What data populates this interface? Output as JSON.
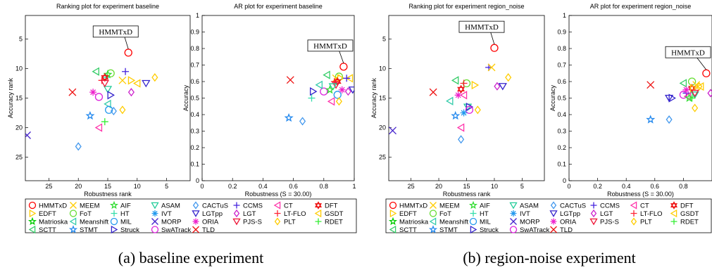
{
  "colors": {
    "HMMTxD": "#ff0000",
    "EDFT": "#ffcc00",
    "Matrioska": "#00cc00",
    "SCTT": "#33cc66",
    "MEEM": "#ffcc00",
    "FoT": "#66dd33",
    "Meanshift": "#33ccaa",
    "STMT": "#2288ee",
    "AIF": "#33dd33",
    "HT": "#33ddaa",
    "MIL": "#2299ee",
    "Struck": "#3322cc",
    "ASAM": "#22cc99",
    "IVT": "#2299ee",
    "MORP": "#4422cc",
    "SwATrack": "#dd22dd",
    "CACTuS": "#4499ee",
    "LGTpp": "#3322cc",
    "ORIA": "#ee22cc",
    "TLD": "#ee1111",
    "CCMS": "#4422dd",
    "LGT": "#cc22cc",
    "PJS-S": "#ee1133",
    "CT": "#ff33aa",
    "LT-FLO": "#ff2233",
    "PLT": "#ffcc00",
    "DFT": "#ee1111",
    "GSDT": "#ffcc00",
    "RDET": "#33ee33"
  },
  "legend": [
    {
      "name": "HMMTxD",
      "marker": "circle"
    },
    {
      "name": "MEEM",
      "marker": "x"
    },
    {
      "name": "AIF",
      "marker": "star"
    },
    {
      "name": "ASAM",
      "marker": "tri-down"
    },
    {
      "name": "CACTuS",
      "marker": "diamond"
    },
    {
      "name": "CCMS",
      "marker": "plus"
    },
    {
      "name": "CT",
      "marker": "tri-left"
    },
    {
      "name": "DFT",
      "marker": "hexagram"
    },
    {
      "name": "EDFT",
      "marker": "tri-right"
    },
    {
      "name": "FoT",
      "marker": "circle"
    },
    {
      "name": "HT",
      "marker": "plus"
    },
    {
      "name": "IVT",
      "marker": "asterisk"
    },
    {
      "name": "LGTpp",
      "marker": "tri-down"
    },
    {
      "name": "LGT",
      "marker": "diamond"
    },
    {
      "name": "LT-FLO",
      "marker": "plus"
    },
    {
      "name": "GSDT",
      "marker": "tri-left"
    },
    {
      "name": "Matrioska",
      "marker": "star"
    },
    {
      "name": "Meanshift",
      "marker": "tri-left"
    },
    {
      "name": "MIL",
      "marker": "circle"
    },
    {
      "name": "MORP",
      "marker": "x"
    },
    {
      "name": "ORIA",
      "marker": "asterisk"
    },
    {
      "name": "PJS-S",
      "marker": "tri-down"
    },
    {
      "name": "PLT",
      "marker": "diamond"
    },
    {
      "name": "RDET",
      "marker": "plus"
    },
    {
      "name": "SCTT",
      "marker": "tri-left"
    },
    {
      "name": "STMT",
      "marker": "star"
    },
    {
      "name": "Struck",
      "marker": "tri-right"
    },
    {
      "name": "SwATrack",
      "marker": "circle"
    },
    {
      "name": "TLD",
      "marker": "x"
    }
  ],
  "captions": {
    "a": "(a) baseline experiment",
    "b": "(b) region-noise experiment"
  },
  "chart_data": [
    {
      "type": "scatter",
      "title": "Ranking plot for experiment baseline",
      "xlabel": "Robustness rank",
      "ylabel": "Accuracy rank",
      "xlim": [
        29,
        1
      ],
      "ylim": [
        1,
        29
      ],
      "xticks": [
        25,
        20,
        15,
        10,
        5
      ],
      "yticks": [
        5,
        10,
        15,
        20,
        25
      ],
      "callout": "HMMTxD",
      "points": [
        {
          "t": "HMMTxD",
          "x": 11.5,
          "y": 7.3
        },
        {
          "t": "MEEM",
          "x": 12.5,
          "y": 12.0
        },
        {
          "t": "EDFT",
          "x": 11.0,
          "y": 12.0
        },
        {
          "t": "FoT",
          "x": 14.5,
          "y": 10.8
        },
        {
          "t": "AIF",
          "x": 15.0,
          "y": 11.0
        },
        {
          "t": "HT",
          "x": 15.3,
          "y": 11.5
        },
        {
          "t": "SCTT",
          "x": 17.0,
          "y": 10.5
        },
        {
          "t": "DFT",
          "x": 15.5,
          "y": 11.5
        },
        {
          "t": "LT-FLO",
          "x": 16.0,
          "y": 12.0
        },
        {
          "t": "CCMS",
          "x": 12.0,
          "y": 10.5
        },
        {
          "t": "PLT",
          "x": 7.0,
          "y": 11.5
        },
        {
          "t": "GSDT",
          "x": 10.0,
          "y": 12.5
        },
        {
          "t": "TLD",
          "x": 21.0,
          "y": 14.0
        },
        {
          "t": "ORIA",
          "x": 17.5,
          "y": 14.0
        },
        {
          "t": "LGTpp",
          "x": 8.5,
          "y": 12.5
        },
        {
          "t": "ASAM",
          "x": 15.0,
          "y": 13.5
        },
        {
          "t": "Struck",
          "x": 14.5,
          "y": 14.5
        },
        {
          "t": "LGT",
          "x": 11.0,
          "y": 14.0
        },
        {
          "t": "SwATrack",
          "x": 16.5,
          "y": 14.8
        },
        {
          "t": "Meanshift",
          "x": 15.0,
          "y": 16.0
        },
        {
          "t": "MIL",
          "x": 14.8,
          "y": 17.0
        },
        {
          "t": "CACTuS",
          "x": 14.0,
          "y": 17.2
        },
        {
          "t": "PLT",
          "x": 12.5,
          "y": 17.0
        },
        {
          "t": "STMT",
          "x": 18.0,
          "y": 18.0
        },
        {
          "t": "RDET",
          "x": 15.5,
          "y": 19.0
        },
        {
          "t": "CT",
          "x": 16.5,
          "y": 20.0
        },
        {
          "t": "MORP",
          "x": 28.7,
          "y": 21.3
        },
        {
          "t": "CACTuS",
          "x": 20.0,
          "y": 23.2
        },
        {
          "t": "PJS-S",
          "x": 15.5,
          "y": 12.5
        }
      ]
    },
    {
      "type": "scatter",
      "title": "AR plot for experiment baseline",
      "xlabel": "Robustness (S = 30.00)",
      "ylabel": "Accuracy",
      "xlim": [
        0,
        1
      ],
      "ylim": [
        0,
        1
      ],
      "xticks": [
        0,
        0.2,
        0.4,
        0.6,
        0.8,
        1
      ],
      "yticks": [
        0,
        0.1,
        0.2,
        0.3,
        0.4,
        0.5,
        0.6,
        0.7,
        0.8,
        0.9,
        1
      ],
      "callout": "HMMTxD",
      "points": [
        {
          "t": "HMMTxD",
          "x": 0.93,
          "y": 0.69
        },
        {
          "t": "TLD",
          "x": 0.58,
          "y": 0.61
        },
        {
          "t": "SCTT",
          "x": 0.82,
          "y": 0.64
        },
        {
          "t": "FoT",
          "x": 0.9,
          "y": 0.63
        },
        {
          "t": "MEEM",
          "x": 0.88,
          "y": 0.62
        },
        {
          "t": "EDFT",
          "x": 0.91,
          "y": 0.62
        },
        {
          "t": "GSDT",
          "x": 0.97,
          "y": 0.62
        },
        {
          "t": "DFT",
          "x": 0.89,
          "y": 0.6
        },
        {
          "t": "LT-FLO",
          "x": 0.87,
          "y": 0.6
        },
        {
          "t": "CCMS",
          "x": 0.95,
          "y": 0.62
        },
        {
          "t": "PJS-S",
          "x": 0.88,
          "y": 0.58
        },
        {
          "t": "ASAM",
          "x": 0.86,
          "y": 0.57
        },
        {
          "t": "Struck",
          "x": 0.73,
          "y": 0.54
        },
        {
          "t": "SwATrack",
          "x": 0.8,
          "y": 0.54
        },
        {
          "t": "HT",
          "x": 0.72,
          "y": 0.5
        },
        {
          "t": "AIF",
          "x": 0.84,
          "y": 0.55
        },
        {
          "t": "LGT",
          "x": 0.96,
          "y": 0.54
        },
        {
          "t": "LGTpp",
          "x": 0.99,
          "y": 0.55
        },
        {
          "t": "MIL",
          "x": 0.89,
          "y": 0.52
        },
        {
          "t": "CT",
          "x": 0.85,
          "y": 0.48
        },
        {
          "t": "PLT",
          "x": 0.9,
          "y": 0.48
        },
        {
          "t": "STMT",
          "x": 0.57,
          "y": 0.38
        },
        {
          "t": "CACTuS",
          "x": 0.66,
          "y": 0.36
        },
        {
          "t": "ORIA",
          "x": 0.92,
          "y": 0.55
        },
        {
          "t": "Meanshift",
          "x": 0.77,
          "y": 0.58
        }
      ]
    },
    {
      "type": "scatter",
      "title": "Ranking plot for experiment region_noise",
      "xlabel": "Robustness rank",
      "ylabel": "Accuracy rank",
      "xlim": [
        29,
        1
      ],
      "ylim": [
        1,
        29
      ],
      "xticks": [
        25,
        20,
        15,
        10,
        5
      ],
      "yticks": [
        5,
        10,
        15,
        20,
        25
      ],
      "callout": "HMMTxD",
      "points": [
        {
          "t": "HMMTxD",
          "x": 10.0,
          "y": 6.5
        },
        {
          "t": "CCMS",
          "x": 11.0,
          "y": 9.8
        },
        {
          "t": "MEEM",
          "x": 10.5,
          "y": 9.8
        },
        {
          "t": "PLT",
          "x": 7.5,
          "y": 11.5
        },
        {
          "t": "SCTT",
          "x": 17.0,
          "y": 12.0
        },
        {
          "t": "FoT",
          "x": 15.0,
          "y": 12.5
        },
        {
          "t": "EDFT",
          "x": 13.5,
          "y": 12.8
        },
        {
          "t": "LT-FLO",
          "x": 15.5,
          "y": 12.5
        },
        {
          "t": "TLD",
          "x": 21.0,
          "y": 14.0
        },
        {
          "t": "DFT",
          "x": 16.0,
          "y": 13.5
        },
        {
          "t": "LGT",
          "x": 9.5,
          "y": 13.0
        },
        {
          "t": "LGTpp",
          "x": 8.5,
          "y": 13.0
        },
        {
          "t": "CT",
          "x": 15.5,
          "y": 14.5
        },
        {
          "t": "ORIA",
          "x": 16.5,
          "y": 14.5
        },
        {
          "t": "Meanshift",
          "x": 18.0,
          "y": 15.5
        },
        {
          "t": "ASAM",
          "x": 14.8,
          "y": 16.5
        },
        {
          "t": "Struck",
          "x": 14.5,
          "y": 16.5
        },
        {
          "t": "SwATrack",
          "x": 14.5,
          "y": 17.0
        },
        {
          "t": "PLT",
          "x": 13.0,
          "y": 17.0
        },
        {
          "t": "STMT",
          "x": 17.0,
          "y": 18.0
        },
        {
          "t": "IVT",
          "x": 15.5,
          "y": 17.5
        },
        {
          "t": "CT",
          "x": 16.0,
          "y": 20.0
        },
        {
          "t": "MORP",
          "x": 28.3,
          "y": 20.5
        },
        {
          "t": "CACTuS",
          "x": 16.0,
          "y": 22.0
        }
      ]
    },
    {
      "type": "scatter",
      "title": "AR plot for experiment region_noise",
      "xlabel": "Robustness (S = 30.00)",
      "ylabel": "Accuracy",
      "xlim": [
        0,
        1
      ],
      "ylim": [
        0,
        1
      ],
      "xticks": [
        0,
        0.2,
        0.4,
        0.6,
        0.8
      ],
      "yticks": [
        0,
        0.1,
        0.2,
        0.3,
        0.4,
        0.5,
        0.6,
        0.7,
        0.8,
        0.9,
        1
      ],
      "callout": "HMMTxD",
      "points": [
        {
          "t": "HMMTxD",
          "x": 0.96,
          "y": 0.65
        },
        {
          "t": "TLD",
          "x": 0.57,
          "y": 0.58
        },
        {
          "t": "SCTT",
          "x": 0.8,
          "y": 0.59
        },
        {
          "t": "FoT",
          "x": 0.86,
          "y": 0.6
        },
        {
          "t": "MEEM",
          "x": 0.89,
          "y": 0.58
        },
        {
          "t": "DFT",
          "x": 0.86,
          "y": 0.56
        },
        {
          "t": "LT-FLO",
          "x": 0.85,
          "y": 0.55
        },
        {
          "t": "EDFT",
          "x": 0.87,
          "y": 0.56
        },
        {
          "t": "PLT",
          "x": 0.91,
          "y": 0.57
        },
        {
          "t": "GSDT",
          "x": 0.92,
          "y": 0.57
        },
        {
          "t": "CCMS",
          "x": 0.82,
          "y": 0.53
        },
        {
          "t": "SwATrack",
          "x": 0.8,
          "y": 0.52
        },
        {
          "t": "LGTpp",
          "x": 0.7,
          "y": 0.5
        },
        {
          "t": "Struck",
          "x": 0.72,
          "y": 0.5
        },
        {
          "t": "CT",
          "x": 0.83,
          "y": 0.51
        },
        {
          "t": "ASAM",
          "x": 0.88,
          "y": 0.52
        },
        {
          "t": "PJS-S",
          "x": 0.88,
          "y": 0.53
        },
        {
          "t": "LGT",
          "x": 0.99,
          "y": 0.53
        },
        {
          "t": "PLT",
          "x": 0.88,
          "y": 0.44
        },
        {
          "t": "AIF",
          "x": 0.84,
          "y": 0.5
        },
        {
          "t": "STMT",
          "x": 0.57,
          "y": 0.37
        },
        {
          "t": "CACTuS",
          "x": 0.7,
          "y": 0.37
        },
        {
          "t": "ORIA",
          "x": 0.82,
          "y": 0.55
        },
        {
          "t": "RDET",
          "x": 0.86,
          "y": 0.5
        }
      ]
    }
  ]
}
